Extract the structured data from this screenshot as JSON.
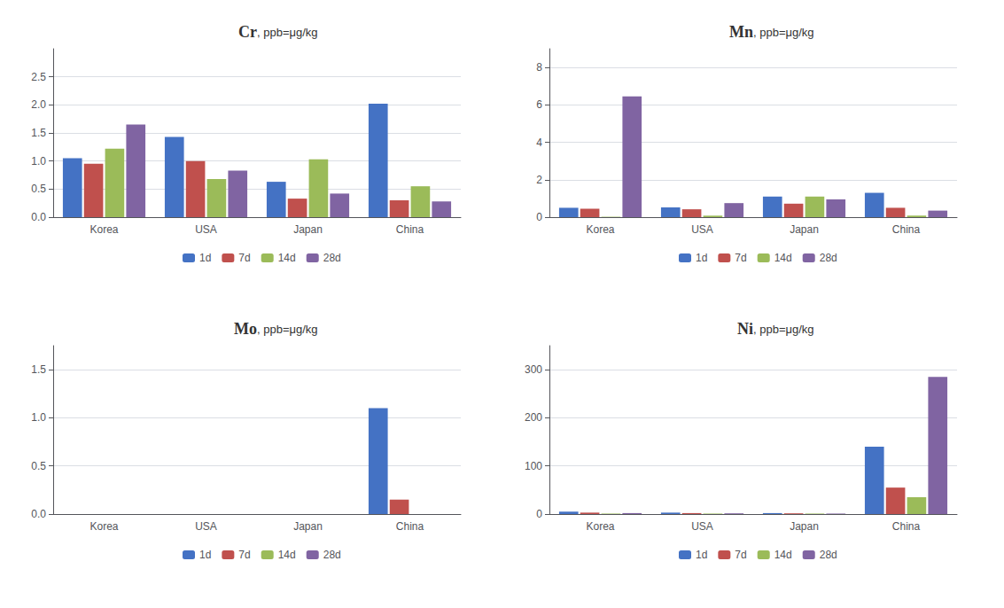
{
  "chart_data": [
    {
      "type": "bar",
      "title": "Cr",
      "subtitle": ", ppb=μg/kg",
      "categories": [
        "Korea",
        "USA",
        "Japan",
        "China"
      ],
      "series": [
        {
          "name": "1d",
          "color": "#4472C4",
          "values": [
            1.05,
            1.43,
            0.63,
            2.02
          ]
        },
        {
          "name": "7d",
          "color": "#C0504D",
          "values": [
            0.95,
            1.0,
            0.33,
            0.3
          ]
        },
        {
          "name": "14d",
          "color": "#9BBB59",
          "values": [
            1.22,
            0.68,
            1.03,
            0.55
          ]
        },
        {
          "name": "28d",
          "color": "#8064A2",
          "values": [
            1.65,
            0.83,
            0.42,
            0.28
          ]
        }
      ],
      "ylim": [
        0,
        3.0
      ],
      "yticks": [
        {
          "value": 0,
          "label": "0.0"
        },
        0.5,
        {
          "value": 1.0,
          "label": "1.0"
        },
        1.5,
        {
          "value": 2.0,
          "label": "2.0"
        },
        2.5
      ],
      "grid": true,
      "legend": "bottom"
    },
    {
      "type": "bar",
      "title": "Mn",
      "subtitle": ", ppb=μg/kg",
      "categories": [
        "Korea",
        "USA",
        "Japan",
        "China"
      ],
      "series": [
        {
          "name": "1d",
          "color": "#4472C4",
          "values": [
            0.5,
            0.52,
            1.1,
            1.3
          ]
        },
        {
          "name": "7d",
          "color": "#C0504D",
          "values": [
            0.45,
            0.42,
            0.72,
            0.5
          ]
        },
        {
          "name": "14d",
          "color": "#9BBB59",
          "values": [
            0.02,
            0.08,
            1.1,
            0.08
          ]
        },
        {
          "name": "28d",
          "color": "#8064A2",
          "values": [
            6.45,
            0.75,
            0.95,
            0.35
          ]
        }
      ],
      "ylim": [
        0,
        9.0
      ],
      "yticks": [
        0,
        2,
        4,
        6,
        8
      ],
      "grid": true,
      "legend": "bottom"
    },
    {
      "type": "bar",
      "title": "Mo",
      "subtitle": ", ppb=μg/kg",
      "categories": [
        "Korea",
        "USA",
        "Japan",
        "China"
      ],
      "series": [
        {
          "name": "1d",
          "color": "#4472C4",
          "values": [
            0.0,
            0.0,
            0.0,
            1.1
          ]
        },
        {
          "name": "7d",
          "color": "#C0504D",
          "values": [
            0.0,
            0.0,
            0.0,
            0.15
          ]
        },
        {
          "name": "14d",
          "color": "#9BBB59",
          "values": [
            0.0,
            0.0,
            0.0,
            0.0
          ]
        },
        {
          "name": "28d",
          "color": "#8064A2",
          "values": [
            0.0,
            0.0,
            0.0,
            0.0
          ]
        }
      ],
      "ylim": [
        0,
        1.75
      ],
      "yticks": [
        {
          "value": 0,
          "label": "0.0"
        },
        0.5,
        {
          "value": 1.0,
          "label": "1.0"
        },
        1.5
      ],
      "grid": true,
      "legend": "bottom"
    },
    {
      "type": "bar",
      "title": "Ni",
      "subtitle": ", ppb=μg/kg",
      "categories": [
        "Korea",
        "USA",
        "Japan",
        "China"
      ],
      "series": [
        {
          "name": "1d",
          "color": "#4472C4",
          "values": [
            5.0,
            3.0,
            2.0,
            140.0
          ]
        },
        {
          "name": "7d",
          "color": "#C0504D",
          "values": [
            3.0,
            2.0,
            1.5,
            55.0
          ]
        },
        {
          "name": "14d",
          "color": "#9BBB59",
          "values": [
            1.0,
            1.0,
            1.0,
            35.0
          ]
        },
        {
          "name": "28d",
          "color": "#8064A2",
          "values": [
            2.0,
            1.5,
            1.0,
            285.0
          ]
        }
      ],
      "ylim": [
        0,
        350
      ],
      "yticks": [
        0,
        100,
        200,
        300
      ],
      "grid": true,
      "legend": "bottom"
    }
  ]
}
